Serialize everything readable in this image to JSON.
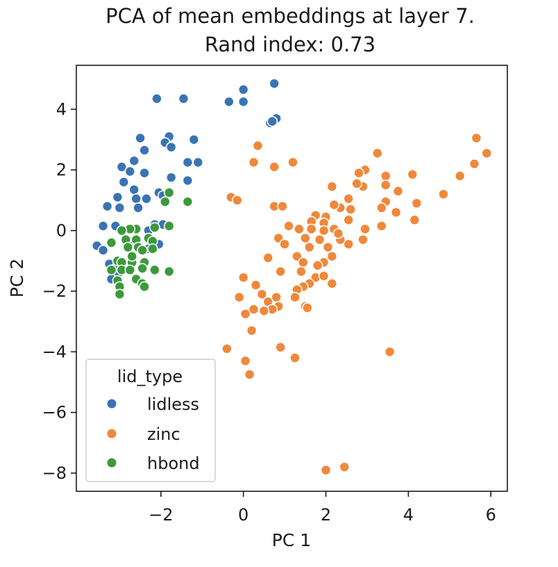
{
  "chart_data": {
    "type": "scatter",
    "title_lines": [
      "PCA of mean embeddings at layer 7.",
      "Rand index: 0.73"
    ],
    "xlabel": "PC 1",
    "ylabel": "PC 2",
    "xlim": [
      -4.05,
      6.4
    ],
    "ylim": [
      -8.6,
      5.45
    ],
    "xticks": [
      -2,
      0,
      2,
      4,
      6
    ],
    "yticks": [
      -8,
      -6,
      -4,
      -2,
      0,
      2,
      4
    ],
    "x_tick_labels": [
      "−2",
      "0",
      "2",
      "4",
      "6"
    ],
    "y_tick_labels": [
      "−8",
      "−6",
      "−4",
      "−2",
      "0",
      "2",
      "4"
    ],
    "legend": {
      "title": "lid_type",
      "position": "lower-left"
    },
    "series": [
      {
        "name": "lidless",
        "color": "#3a74b3",
        "points": [
          [
            -2.1,
            4.35
          ],
          [
            -1.45,
            4.35
          ],
          [
            0.0,
            4.65
          ],
          [
            -0.35,
            4.25
          ],
          [
            0.0,
            4.25
          ],
          [
            0.75,
            4.85
          ],
          [
            0.8,
            3.7
          ],
          [
            0.65,
            3.55
          ],
          [
            0.7,
            3.6
          ],
          [
            -2.5,
            3.05
          ],
          [
            -1.8,
            3.1
          ],
          [
            -1.9,
            2.9
          ],
          [
            -1.2,
            3.0
          ],
          [
            -1.75,
            2.75
          ],
          [
            -2.4,
            2.65
          ],
          [
            -2.65,
            2.3
          ],
          [
            -1.35,
            2.25
          ],
          [
            -1.1,
            2.25
          ],
          [
            -2.95,
            2.1
          ],
          [
            -2.75,
            1.95
          ],
          [
            -2.4,
            1.9
          ],
          [
            -1.75,
            1.75
          ],
          [
            -1.35,
            1.65
          ],
          [
            -2.9,
            1.6
          ],
          [
            -2.65,
            1.35
          ],
          [
            -2.05,
            1.25
          ],
          [
            -1.95,
            1.15
          ],
          [
            -3.05,
            1.1
          ],
          [
            -2.6,
            1.05
          ],
          [
            -2.35,
            1.05
          ],
          [
            -3.3,
            0.8
          ],
          [
            -3.0,
            0.75
          ],
          [
            -2.55,
            0.75
          ],
          [
            -3.4,
            0.15
          ],
          [
            -3.1,
            0.15
          ],
          [
            -2.15,
            0.2
          ],
          [
            -1.95,
            0.2
          ],
          [
            -2.3,
            0.0
          ],
          [
            -2.75,
            -0.35
          ],
          [
            -3.55,
            -0.5
          ],
          [
            -3.4,
            -0.65
          ],
          [
            -3.25,
            -1.1
          ],
          [
            -3.1,
            -1.25
          ],
          [
            -3.05,
            -1.45
          ],
          [
            -3.2,
            -1.6
          ],
          [
            -2.3,
            -0.6
          ],
          [
            -2.05,
            -0.45
          ]
        ]
      },
      {
        "name": "zinc",
        "color": "#f0883a",
        "points": [
          [
            5.65,
            3.05
          ],
          [
            5.9,
            2.55
          ],
          [
            5.6,
            2.2
          ],
          [
            5.25,
            1.8
          ],
          [
            4.85,
            1.2
          ],
          [
            4.2,
            0.9
          ],
          [
            4.1,
            1.85
          ],
          [
            4.15,
            0.35
          ],
          [
            3.75,
            1.3
          ],
          [
            3.7,
            0.6
          ],
          [
            3.45,
            1.8
          ],
          [
            3.45,
            1.5
          ],
          [
            3.45,
            0.95
          ],
          [
            3.35,
            0.75
          ],
          [
            3.25,
            2.55
          ],
          [
            3.35,
            0.15
          ],
          [
            2.95,
            2.0
          ],
          [
            2.9,
            1.45
          ],
          [
            2.8,
            1.9
          ],
          [
            2.75,
            1.55
          ],
          [
            2.6,
            0.7
          ],
          [
            2.55,
            1.05
          ],
          [
            2.35,
            0.75
          ],
          [
            2.55,
            0.35
          ],
          [
            2.95,
            0.05
          ],
          [
            2.9,
            -0.3
          ],
          [
            2.55,
            -0.45
          ],
          [
            2.35,
            -0.3
          ],
          [
            2.15,
            1.45
          ],
          [
            2.2,
            0.85
          ],
          [
            2.2,
            0.05
          ],
          [
            2.3,
            -0.1
          ],
          [
            2.0,
            0.45
          ],
          [
            1.95,
            0.25
          ],
          [
            1.95,
            0.0
          ],
          [
            1.85,
            -0.3
          ],
          [
            2.05,
            -0.55
          ],
          [
            2.15,
            -0.85
          ],
          [
            1.95,
            -1.05
          ],
          [
            1.8,
            -1.15
          ],
          [
            1.75,
            0.5
          ],
          [
            1.65,
            0.3
          ],
          [
            1.65,
            0.05
          ],
          [
            1.6,
            -0.55
          ],
          [
            1.5,
            -0.25
          ],
          [
            1.35,
            0.05
          ],
          [
            1.3,
            -0.85
          ],
          [
            1.45,
            -1.05
          ],
          [
            1.4,
            -1.35
          ],
          [
            1.75,
            -1.55
          ],
          [
            1.95,
            -1.5
          ],
          [
            2.15,
            -1.75
          ],
          [
            1.6,
            -1.75
          ],
          [
            1.45,
            -1.85
          ],
          [
            1.3,
            -1.95
          ],
          [
            1.25,
            -2.2
          ],
          [
            1.5,
            -2.5
          ],
          [
            1.55,
            -2.55
          ],
          [
            1.2,
            2.25
          ],
          [
            0.75,
            2.1
          ],
          [
            0.35,
            2.8
          ],
          [
            0.25,
            2.25
          ],
          [
            0.9,
            0.8
          ],
          [
            0.75,
            0.8
          ],
          [
            0.95,
            0.8
          ],
          [
            1.1,
            0.15
          ],
          [
            0.85,
            -0.25
          ],
          [
            1.0,
            -0.45
          ],
          [
            0.6,
            -0.9
          ],
          [
            0.9,
            -1.35
          ],
          [
            0.0,
            -1.55
          ],
          [
            0.3,
            -1.8
          ],
          [
            0.45,
            -2.1
          ],
          [
            0.6,
            -2.35
          ],
          [
            0.8,
            -2.2
          ],
          [
            0.85,
            -2.5
          ],
          [
            0.7,
            -2.6
          ],
          [
            0.5,
            -2.65
          ],
          [
            0.25,
            -2.6
          ],
          [
            0.05,
            -2.75
          ],
          [
            -0.1,
            -2.2
          ],
          [
            0.2,
            -3.3
          ],
          [
            -0.4,
            -3.9
          ],
          [
            0.9,
            -3.85
          ],
          [
            1.25,
            -4.2
          ],
          [
            0.05,
            -4.3
          ],
          [
            0.15,
            -4.75
          ],
          [
            3.55,
            -4.0
          ],
          [
            2.0,
            -7.9
          ],
          [
            2.45,
            -7.8
          ],
          [
            -0.3,
            1.1
          ],
          [
            -0.15,
            1.0
          ]
        ]
      },
      {
        "name": "hbond",
        "color": "#3b9a3b",
        "points": [
          [
            -1.8,
            1.25
          ],
          [
            -1.9,
            0.95
          ],
          [
            -1.35,
            0.95
          ],
          [
            -1.8,
            0.15
          ],
          [
            -2.15,
            0.1
          ],
          [
            -2.6,
            0.05
          ],
          [
            -2.75,
            0.05
          ],
          [
            -2.95,
            0.0
          ],
          [
            -2.85,
            -0.3
          ],
          [
            -2.6,
            -0.3
          ],
          [
            -2.3,
            -0.25
          ],
          [
            -2.2,
            -0.35
          ],
          [
            -2.55,
            -0.55
          ],
          [
            -2.8,
            -0.55
          ],
          [
            -3.2,
            -0.4
          ],
          [
            -2.45,
            -0.65
          ],
          [
            -2.2,
            -0.6
          ],
          [
            -3.05,
            -1.0
          ],
          [
            -2.95,
            -1.05
          ],
          [
            -2.7,
            -1.05
          ],
          [
            -2.4,
            -1.05
          ],
          [
            -2.45,
            -1.25
          ],
          [
            -2.95,
            -1.3
          ],
          [
            -3.2,
            -1.3
          ],
          [
            -2.75,
            -1.3
          ],
          [
            -2.15,
            -1.3
          ],
          [
            -1.8,
            -1.35
          ],
          [
            -2.6,
            -1.6
          ],
          [
            -2.45,
            -1.75
          ],
          [
            -3.05,
            -1.65
          ],
          [
            -3.0,
            -1.85
          ],
          [
            -2.4,
            -1.85
          ],
          [
            -3.0,
            -2.1
          ],
          [
            -2.7,
            -0.85
          ]
        ]
      }
    ]
  }
}
